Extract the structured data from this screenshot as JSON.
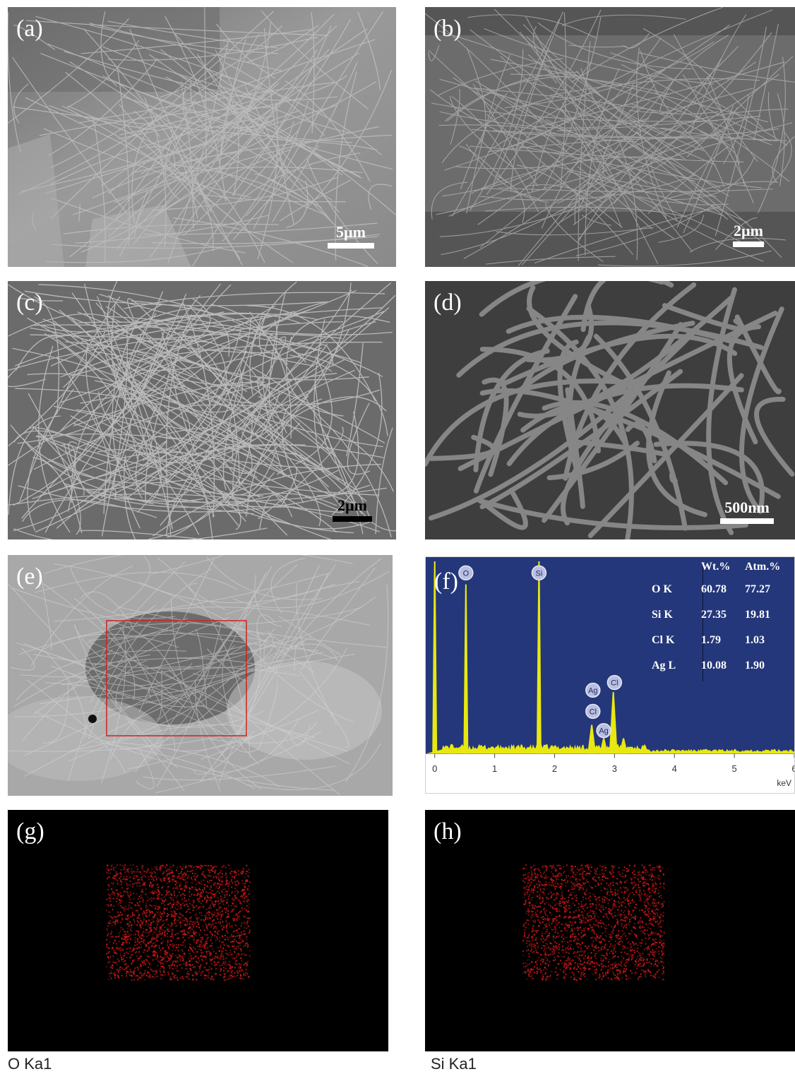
{
  "panels": [
    {
      "label": "(a)",
      "scale": "5µm"
    },
    {
      "label": "(b)",
      "scale": "2µm"
    },
    {
      "label": "(c)",
      "scale": "2µm"
    },
    {
      "label": "(d)",
      "scale": "500nm"
    },
    {
      "label": "(e)"
    },
    {
      "label": "(f)"
    },
    {
      "label": "(g)",
      "caption": "O Ka1"
    },
    {
      "label": "(h)",
      "caption": "Si Ka1"
    }
  ],
  "eds": {
    "headers": [
      "",
      "Wt.%",
      "Atm.%"
    ],
    "rows": [
      {
        "el": "O K",
        "wt": "60.78",
        "atm": "77.27"
      },
      {
        "el": "Si K",
        "wt": "27.35",
        "atm": "19.81"
      },
      {
        "el": "Cl K",
        "wt": "1.79",
        "atm": "1.03"
      },
      {
        "el": "Ag L",
        "wt": "10.08",
        "atm": "1.90"
      }
    ],
    "peak_labels": [
      "O",
      "Si",
      "Ag",
      "Cl",
      "Ag",
      "Cl"
    ],
    "x_ticks": [
      "0",
      "1",
      "2",
      "3",
      "4",
      "5",
      "6"
    ],
    "x_unit": "keV"
  },
  "chart_data": {
    "type": "line",
    "title": "",
    "xlabel": "keV",
    "ylabel": "",
    "xlim": [
      -0.15,
      6
    ],
    "x_ticks": [
      0,
      1,
      2,
      3,
      4,
      5,
      6
    ],
    "series": [
      {
        "x": [
          0.0,
          0.28,
          0.52,
          1.74,
          2.62,
          2.82,
          2.98,
          3.15
        ],
        "y": [
          1.0,
          0.05,
          0.88,
          1.0,
          0.15,
          0.08,
          0.32,
          0.08
        ]
      }
    ],
    "peaks": [
      {
        "element": "O",
        "x": 0.52
      },
      {
        "element": "Si",
        "x": 1.74
      },
      {
        "element": "Cl",
        "x": 2.62
      },
      {
        "element": "Ag",
        "x": 2.64
      },
      {
        "element": "Cl",
        "x": 2.82
      },
      {
        "element": "Ag",
        "x": 2.98
      }
    ]
  },
  "colors": {
    "eds_background": "#24377a",
    "eds_spectrum": "#e8e810",
    "selection_box": "#d42020",
    "map_dots": "#c81818"
  }
}
